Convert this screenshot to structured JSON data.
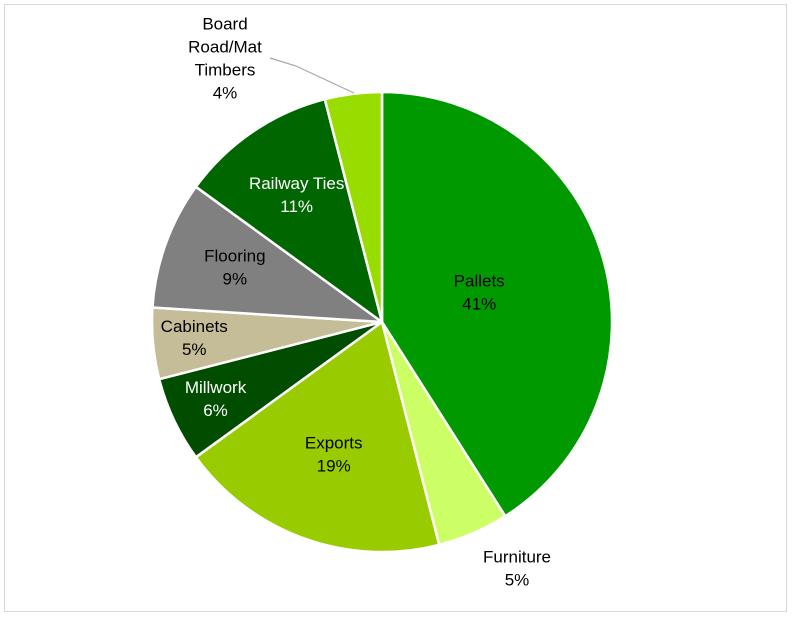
{
  "chart_data": {
    "type": "pie",
    "title": "",
    "categories": [
      "Pallets",
      "Furniture",
      "Exports",
      "Millwork",
      "Cabinets",
      "Flooring",
      "Railway Ties",
      "Board Road/Mat Timbers"
    ],
    "values": [
      41,
      5,
      19,
      6,
      5,
      9,
      11,
      4
    ],
    "value_labels": [
      "41%",
      "5%",
      "19%",
      "6%",
      "5%",
      "9%",
      "11%",
      "4%"
    ],
    "label_lines": [
      [
        "Pallets"
      ],
      [
        "Furniture"
      ],
      [
        "Exports"
      ],
      [
        "Millwork"
      ],
      [
        "Cabinets"
      ],
      [
        "Flooring"
      ],
      [
        "Railway Ties"
      ],
      [
        "Board",
        "Road/Mat",
        "Timbers"
      ]
    ],
    "colors": [
      "#009900",
      "#ccff66",
      "#99cc00",
      "#004d00",
      "#c4bd97",
      "#808080",
      "#006600",
      "#99dd00"
    ],
    "label_colors": [
      "#000000",
      "#000000",
      "#000000",
      "#ffffff",
      "#000000",
      "#000000",
      "#ffffff",
      "#000000"
    ],
    "legend": "none",
    "grid": false
  }
}
